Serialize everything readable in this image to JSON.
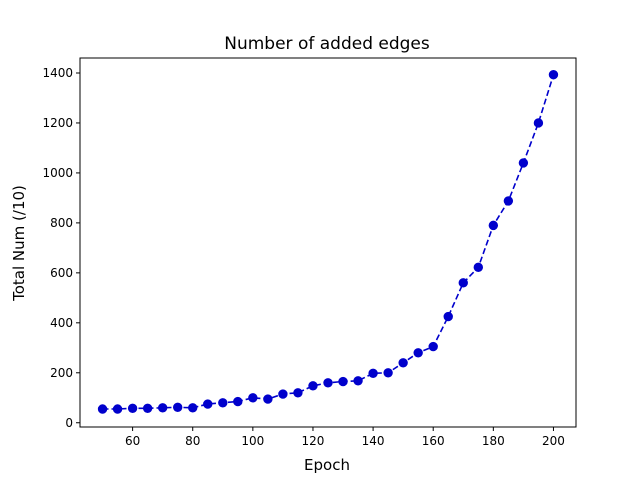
{
  "chart_data": {
    "type": "line",
    "title": "Number of added edges",
    "xlabel": "Epoch",
    "ylabel": "Total Num (/10)",
    "xlim": [
      42.5,
      207.5
    ],
    "ylim": [
      -17,
      1460
    ],
    "xticks": [
      60,
      80,
      100,
      120,
      140,
      160,
      180,
      200
    ],
    "yticks": [
      0,
      200,
      400,
      600,
      800,
      1000,
      1200,
      1400
    ],
    "grid": false,
    "legend": "none",
    "series": [
      {
        "color": "#0000cc",
        "line_style": "dashed",
        "marker": "circle",
        "x": [
          50,
          55,
          60,
          65,
          70,
          75,
          80,
          85,
          90,
          95,
          100,
          105,
          110,
          115,
          120,
          125,
          130,
          135,
          140,
          145,
          150,
          155,
          160,
          165,
          170,
          175,
          180,
          185,
          190,
          195,
          200
        ],
        "y": [
          55,
          55,
          58,
          58,
          60,
          62,
          60,
          75,
          80,
          85,
          100,
          95,
          115,
          120,
          148,
          160,
          165,
          168,
          198,
          200,
          240,
          280,
          305,
          425,
          560,
          622,
          790,
          888,
          1040,
          1200,
          1393
        ]
      }
    ]
  }
}
